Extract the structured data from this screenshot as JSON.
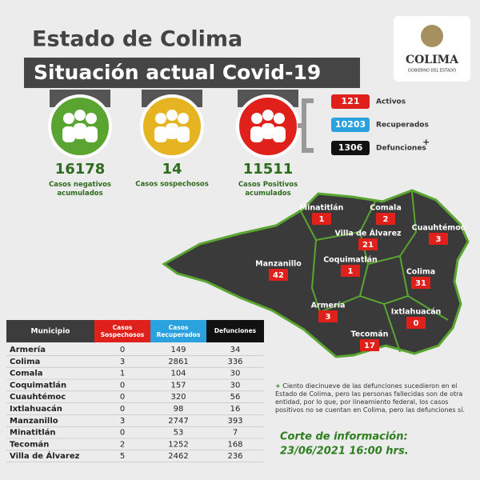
{
  "header": {
    "title": "Estado de Colima",
    "subtitle": "Situación actual Covid-19",
    "logo": "COLIMA",
    "logo_sub": "GOBIERNO DEL ESTADO"
  },
  "stats": [
    {
      "value": "16178",
      "label": "Casos negativos acumulados"
    },
    {
      "value": "14",
      "label": "Casos sospechosos"
    },
    {
      "value": "11511",
      "label": "Casos Positivos acumulados"
    }
  ],
  "breakdown": [
    {
      "value": "121",
      "label": "Activos"
    },
    {
      "value": "10203",
      "label": "Recuperados"
    },
    {
      "value": "1306",
      "label": "Defunciones"
    }
  ],
  "breakdown_mark": "+",
  "map": [
    {
      "name": "Minatitlán",
      "value": "1"
    },
    {
      "name": "Comala",
      "value": "2"
    },
    {
      "name": "Villa de Álvarez",
      "value": "21"
    },
    {
      "name": "Cuauhtémoc",
      "value": "3"
    },
    {
      "name": "Manzanillo",
      "value": "42"
    },
    {
      "name": "Coquimatlán",
      "value": "1"
    },
    {
      "name": "Colima",
      "value": "31"
    },
    {
      "name": "Armería",
      "value": "3"
    },
    {
      "name": "Ixtlahuacán",
      "value": "0"
    },
    {
      "name": "Tecomán",
      "value": "17"
    }
  ],
  "table": {
    "headers": [
      "Municipio",
      "Casos Sospechosos",
      "Casos Recuperados",
      "Defunciones"
    ],
    "rows": [
      [
        "Armería",
        "0",
        "149",
        "34"
      ],
      [
        "Colima",
        "3",
        "2861",
        "336"
      ],
      [
        "Comala",
        "1",
        "104",
        "30"
      ],
      [
        "Coquimatlán",
        "0",
        "157",
        "30"
      ],
      [
        "Cuauhtémoc",
        "0",
        "320",
        "56"
      ],
      [
        "Ixtlahuacán",
        "0",
        "98",
        "16"
      ],
      [
        "Manzanillo",
        "3",
        "2747",
        "393"
      ],
      [
        "Minatitlán",
        "0",
        "53",
        "7"
      ],
      [
        "Tecomán",
        "2",
        "1252",
        "168"
      ],
      [
        "Villa de Álvarez",
        "5",
        "2462",
        "236"
      ]
    ]
  },
  "note_mark": "+",
  "note": "Ciento diecinueve de las defunciones sucedieron en el Estado de Colima, pero las personas fallecidas son de otra entidad, por lo que, por lineamiento federal, los casos positivos no se cuentan en Colima, pero las defunciones sí.",
  "cutoff": {
    "title": "Corte de información:",
    "date": "23/06/2021 16:00 hrs."
  }
}
